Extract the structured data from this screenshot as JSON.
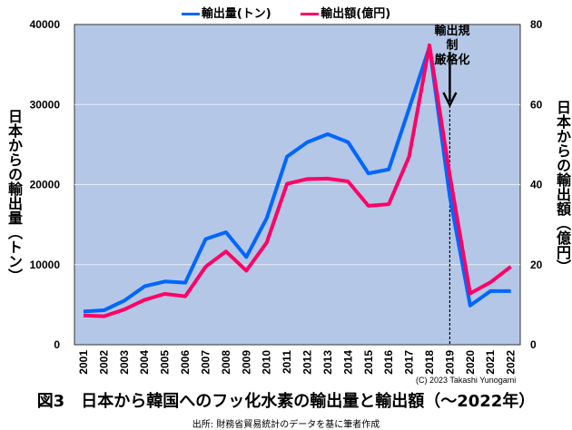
{
  "chart_data": {
    "type": "line",
    "title": "図3　日本から韓国へのフッ化水素の輸出量と輸出額（～2022年）",
    "source": "出所: 財務省貿易統計のデータを基に筆者作成",
    "copyright": "(C) 2023 Takashi Yunogami",
    "x": [
      "2001",
      "2002",
      "2003",
      "2004",
      "2005",
      "2006",
      "2007",
      "2008",
      "2009",
      "2010",
      "2011",
      "2012",
      "2013",
      "2014",
      "2015",
      "2016",
      "2017",
      "2018",
      "2019",
      "2020",
      "2021",
      "2022"
    ],
    "ylabel_left": "日本からの輸出量（トン）",
    "ylabel_right": "日本からの輸出額（億円）",
    "ylim_left": [
      0,
      40000
    ],
    "ylim_right": [
      0,
      80
    ],
    "yticks_left": [
      "0",
      "10000",
      "20000",
      "30000",
      "40000"
    ],
    "yticks_right": [
      "0",
      "20",
      "40",
      "60",
      "80"
    ],
    "grid": true,
    "legend_position": "top",
    "background": "#b4c7e7",
    "series": [
      {
        "name": "輸出量(トン)",
        "axis": "left",
        "color": "#0066ff",
        "values": [
          4150,
          4300,
          5500,
          7300,
          7900,
          7750,
          13200,
          14050,
          10950,
          15800,
          23500,
          25300,
          26300,
          25300,
          21400,
          21900,
          29500,
          37200,
          18500,
          4900,
          6700,
          6700
        ]
      },
      {
        "name": "輸出額(億円)",
        "axis": "right",
        "color": "#ff0066",
        "values": [
          7.3,
          7.1,
          8.8,
          11.2,
          12.7,
          12.1,
          19.5,
          23.3,
          18.5,
          25.5,
          40.2,
          41.4,
          41.5,
          40.8,
          34.7,
          35.1,
          47.0,
          74.8,
          42.3,
          12.8,
          15.6,
          19.5
        ]
      }
    ],
    "annotation": {
      "text_line1": "輸出規制",
      "text_line2": "厳格化",
      "x": "2019"
    }
  }
}
